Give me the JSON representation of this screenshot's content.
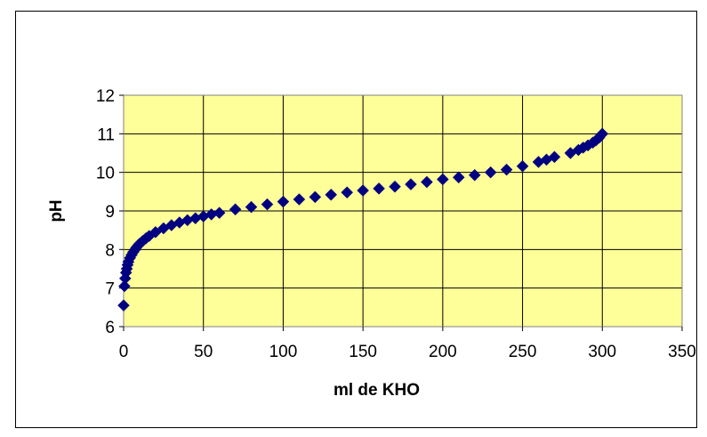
{
  "chart_data": {
    "type": "scatter",
    "title": "",
    "xlabel": "ml de KHO",
    "ylabel": "pH",
    "xlim": [
      0,
      350
    ],
    "ylim": [
      6,
      12
    ],
    "x_ticks": [
      "0",
      "50",
      "100",
      "150",
      "200",
      "250",
      "300",
      "350"
    ],
    "y_ticks": [
      "6",
      "7",
      "8",
      "9",
      "10",
      "11",
      "12"
    ],
    "grid": true,
    "legend": "none",
    "colors": {
      "plot_background": "#ffff99",
      "marker": "#000080",
      "grid": "#000000"
    },
    "series": [
      {
        "marker": "diamond",
        "points": [
          [
            0,
            6.55
          ],
          [
            0.5,
            7.05
          ],
          [
            1,
            7.25
          ],
          [
            1.5,
            7.4
          ],
          [
            2,
            7.5
          ],
          [
            2.5,
            7.6
          ],
          [
            3,
            7.68
          ],
          [
            4,
            7.78
          ],
          [
            5,
            7.86
          ],
          [
            6,
            7.93
          ],
          [
            7,
            7.99
          ],
          [
            8,
            8.05
          ],
          [
            9,
            8.1
          ],
          [
            10,
            8.15
          ],
          [
            12,
            8.22
          ],
          [
            14,
            8.29
          ],
          [
            16,
            8.35
          ],
          [
            20,
            8.45
          ],
          [
            25,
            8.55
          ],
          [
            30,
            8.63
          ],
          [
            35,
            8.7
          ],
          [
            40,
            8.76
          ],
          [
            45,
            8.81
          ],
          [
            50,
            8.86
          ],
          [
            55,
            8.91
          ],
          [
            60,
            8.95
          ],
          [
            70,
            9.04
          ],
          [
            80,
            9.1
          ],
          [
            90,
            9.17
          ],
          [
            100,
            9.24
          ],
          [
            110,
            9.3
          ],
          [
            120,
            9.36
          ],
          [
            130,
            9.42
          ],
          [
            140,
            9.48
          ],
          [
            150,
            9.53
          ],
          [
            160,
            9.58
          ],
          [
            170,
            9.63
          ],
          [
            180,
            9.69
          ],
          [
            190,
            9.75
          ],
          [
            200,
            9.82
          ],
          [
            210,
            9.87
          ],
          [
            220,
            9.93
          ],
          [
            230,
            10.0
          ],
          [
            240,
            10.07
          ],
          [
            250,
            10.16
          ],
          [
            260,
            10.27
          ],
          [
            265,
            10.33
          ],
          [
            270,
            10.4
          ],
          [
            280,
            10.5
          ],
          [
            285,
            10.58
          ],
          [
            288,
            10.64
          ],
          [
            291,
            10.7
          ],
          [
            294,
            10.77
          ],
          [
            296,
            10.83
          ],
          [
            298,
            10.9
          ],
          [
            300,
            11.0
          ]
        ]
      }
    ]
  }
}
